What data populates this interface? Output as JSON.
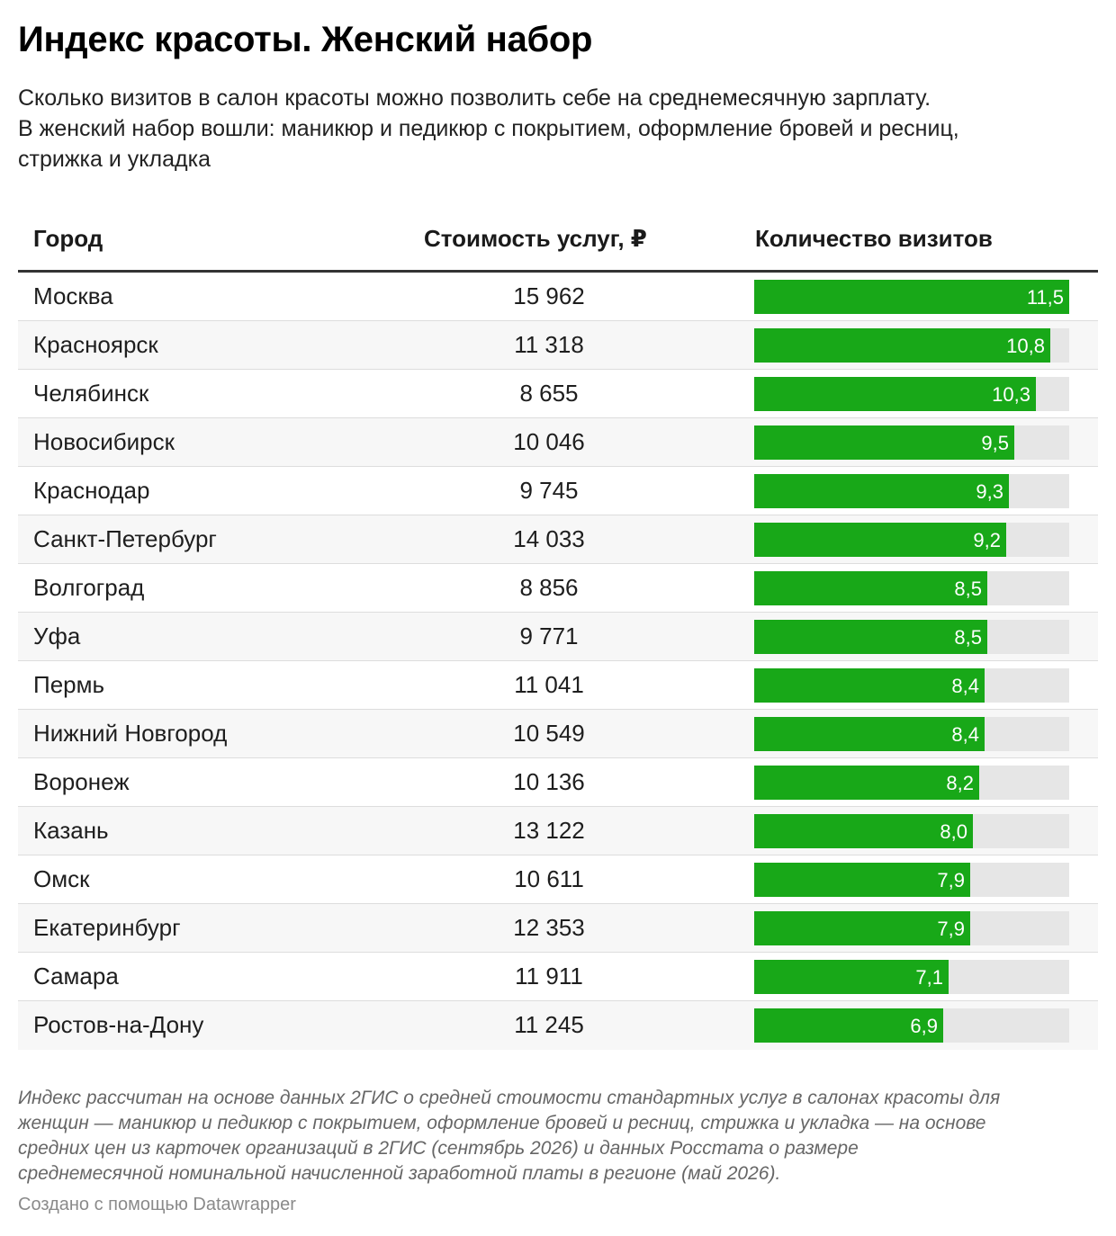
{
  "title": "Индекс красоты. Женский набор",
  "subtitle_lines": [
    "Сколько визитов в салон красоты можно позволить себе на среднемесячную зарплату.",
    "В женский набор вошли: маникюр и педикюр с покрытием, оформление бровей и ресниц,",
    "стрижка и укладка"
  ],
  "colors": {
    "bar": "#18a818",
    "track": "#e6e6e6",
    "row_alt": "#f7f7f7"
  },
  "chart_data": {
    "type": "table",
    "columns": [
      "Город",
      "Стоимость услуг, ₽",
      "Количество визитов"
    ],
    "rows": [
      {
        "city": "Москва",
        "cost": "15 962",
        "visits": 11.5,
        "visits_label": "11,5"
      },
      {
        "city": "Красноярск",
        "cost": "11 318",
        "visits": 10.8,
        "visits_label": "10,8"
      },
      {
        "city": "Челябинск",
        "cost": "8 655",
        "visits": 10.3,
        "visits_label": "10,3"
      },
      {
        "city": "Новосибирск",
        "cost": "10 046",
        "visits": 9.5,
        "visits_label": "9,5"
      },
      {
        "city": "Краснодар",
        "cost": "9 745",
        "visits": 9.3,
        "visits_label": "9,3"
      },
      {
        "city": "Санкт-Петербург",
        "cost": "14 033",
        "visits": 9.2,
        "visits_label": "9,2"
      },
      {
        "city": "Волгоград",
        "cost": "8 856",
        "visits": 8.5,
        "visits_label": "8,5"
      },
      {
        "city": "Уфа",
        "cost": "9 771",
        "visits": 8.5,
        "visits_label": "8,5"
      },
      {
        "city": "Пермь",
        "cost": "11 041",
        "visits": 8.4,
        "visits_label": "8,4"
      },
      {
        "city": "Нижний Новгород",
        "cost": "10 549",
        "visits": 8.4,
        "visits_label": "8,4"
      },
      {
        "city": "Воронеж",
        "cost": "10 136",
        "visits": 8.2,
        "visits_label": "8,2"
      },
      {
        "city": "Казань",
        "cost": "13 122",
        "visits": 8.0,
        "visits_label": "8,0"
      },
      {
        "city": "Омск",
        "cost": "10 611",
        "visits": 7.9,
        "visits_label": "7,9"
      },
      {
        "city": "Екатеринбург",
        "cost": "12 353",
        "visits": 7.9,
        "visits_label": "7,9"
      },
      {
        "city": "Самара",
        "cost": "11 911",
        "visits": 7.1,
        "visits_label": "7,1"
      },
      {
        "city": "Ростов-на-Дону",
        "cost": "11 245",
        "visits": 6.9,
        "visits_label": "6,9"
      }
    ],
    "visits_max": 11.5
  },
  "notes_lines": [
    "Индекс рассчитан на основе данных 2ГИС о средней стоимости стандартных услуг в салонах красоты для",
    "женщин — маникюр и педикюр с покрытием, оформление бровей и ресниц, стрижка и укладка — на основе",
    "средних цен из карточек организаций в 2ГИС (сентябрь 2026) и данных Росстата о размере",
    "среднемесячной номинальной начисленной заработной платы в регионе (май 2026)."
  ],
  "credit": "Создано с помощью Datawrapper"
}
